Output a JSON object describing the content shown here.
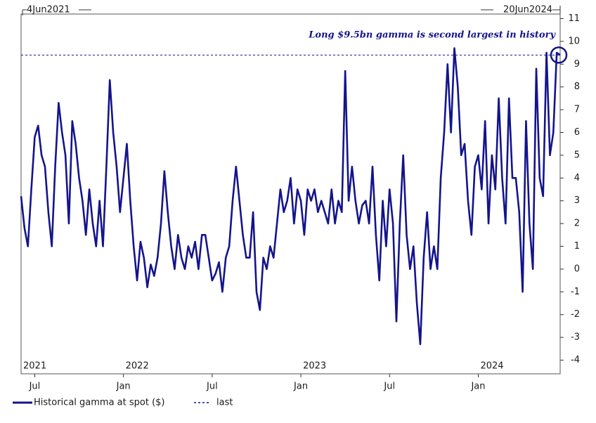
{
  "chart_data": {
    "type": "line",
    "start_label": "4Jun2021",
    "end_label": "20Jun2024",
    "annotation": "Long $9.5bn gamma is second largest in history",
    "series": [
      {
        "name": "Historical gamma at spot ($)",
        "color": "#14148c",
        "values": [
          3.2,
          1.8,
          1.0,
          3.5,
          5.8,
          6.3,
          5.0,
          4.5,
          2.5,
          1.0,
          4.5,
          7.3,
          6.0,
          5.0,
          2.0,
          6.5,
          5.5,
          4.0,
          3.0,
          1.5,
          3.5,
          2.0,
          1.0,
          3.0,
          1.0,
          4.5,
          8.3,
          6.0,
          4.5,
          2.5,
          4.0,
          5.5,
          3.0,
          1.0,
          -0.5,
          1.2,
          0.5,
          -0.8,
          0.2,
          -0.3,
          0.5,
          2.0,
          4.3,
          2.5,
          1.0,
          0.0,
          1.5,
          0.5,
          0.0,
          1.0,
          0.5,
          1.2,
          0.0,
          1.5,
          1.5,
          0.5,
          -0.5,
          -0.2,
          0.3,
          -1.0,
          0.5,
          1.0,
          3.0,
          4.5,
          3.0,
          1.5,
          0.5,
          0.5,
          2.5,
          -1.0,
          -1.8,
          0.5,
          0.0,
          1.0,
          0.5,
          2.0,
          3.5,
          2.5,
          3.0,
          4.0,
          2.0,
          3.5,
          3.0,
          1.5,
          3.5,
          3.0,
          3.5,
          2.5,
          3.0,
          2.5,
          2.0,
          3.5,
          2.0,
          3.0,
          2.5,
          8.7,
          3.0,
          4.5,
          3.0,
          2.0,
          2.8,
          3.0,
          2.0,
          4.5,
          1.5,
          -0.5,
          3.0,
          1.0,
          3.5,
          2.0,
          -2.3,
          2.0,
          5.0,
          1.5,
          0.0,
          1.0,
          -1.5,
          -3.3,
          0.5,
          2.5,
          0.0,
          1.0,
          0.0,
          4.0,
          6.0,
          9.0,
          6.0,
          9.7,
          8.0,
          5.0,
          5.5,
          3.0,
          1.5,
          4.5,
          5.0,
          3.5,
          6.5,
          2.0,
          5.0,
          3.5,
          7.5,
          4.0,
          2.0,
          7.5,
          4.0,
          4.0,
          2.5,
          -1.0,
          6.5,
          2.0,
          0.0,
          8.8,
          4.0,
          3.2,
          9.5,
          5.0,
          6.0,
          9.5,
          9.4
        ]
      }
    ],
    "last": {
      "name": "last",
      "value": 9.4
    },
    "xlim": [
      0,
      158
    ],
    "xticks": [
      {
        "value": 4,
        "label": "Jul"
      },
      {
        "value": 30,
        "label": "Jan"
      },
      {
        "value": 56,
        "label": "Jul"
      },
      {
        "value": 82,
        "label": "Jan"
      },
      {
        "value": 108,
        "label": "Jul"
      },
      {
        "value": 134,
        "label": "Jan"
      }
    ],
    "year_ticks": [
      {
        "value": 0,
        "label": "2021"
      },
      {
        "value": 30,
        "label": "2022"
      },
      {
        "value": 82,
        "label": "2023"
      },
      {
        "value": 134,
        "label": "2024"
      }
    ],
    "ylim": [
      -4.6,
      11.2
    ],
    "yticks": [
      -4,
      -3,
      -2,
      -1,
      0,
      1,
      2,
      3,
      4,
      5,
      6,
      7,
      8,
      9,
      10,
      11
    ]
  }
}
